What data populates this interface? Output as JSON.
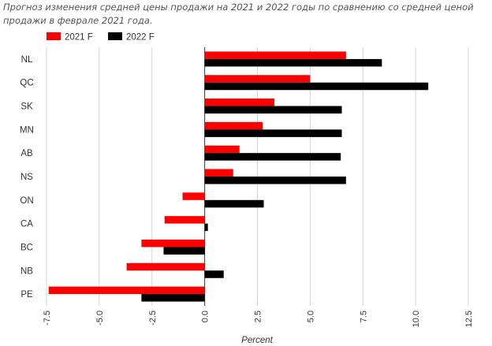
{
  "caption": "Прогноз изменения средней цены продажи на 2021 и 2022 годы по сравнению со средней ценой продажи в феврале 2021 года.",
  "chart_data": {
    "type": "bar",
    "orientation": "horizontal",
    "categories": [
      "NL",
      "QC",
      "SK",
      "MN",
      "AB",
      "NS",
      "ON",
      "CA",
      "BC",
      "NB",
      "PE"
    ],
    "series": [
      {
        "name": "2021 F",
        "color": "#ff0000",
        "values": [
          6.7,
          5.0,
          3.3,
          2.75,
          1.65,
          1.35,
          -1.05,
          -1.9,
          -3.0,
          -3.7,
          -7.4
        ]
      },
      {
        "name": "2022 F",
        "color": "#000000",
        "values": [
          8.4,
          10.6,
          6.5,
          6.5,
          6.45,
          6.7,
          2.8,
          0.15,
          -1.95,
          0.9,
          -3.0
        ]
      }
    ],
    "xlim": [
      -7.5,
      12.5
    ],
    "xticks": [
      "-7.5",
      "-5.0",
      "-2.5",
      "0.0",
      "2.5",
      "5.0",
      "7.5",
      "10.0",
      "12.5"
    ],
    "xlabel": "Percent",
    "ylabel": "",
    "grid": true,
    "legend_position": "top-left"
  }
}
